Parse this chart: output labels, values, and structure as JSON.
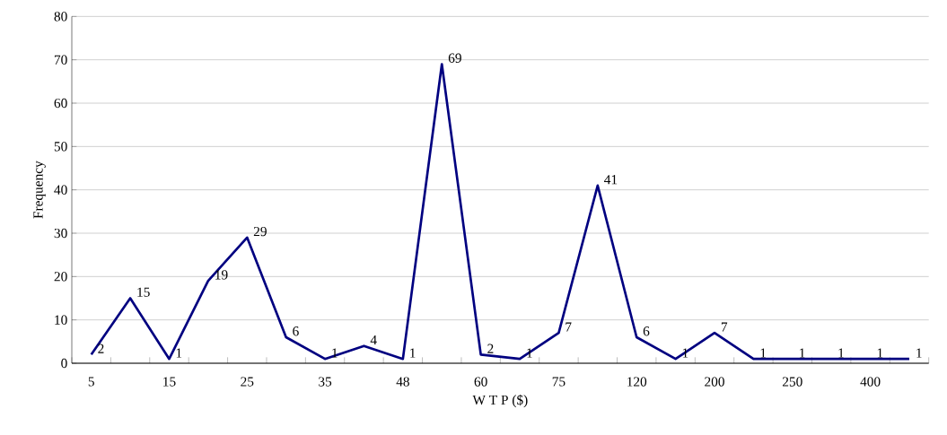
{
  "chart_data": {
    "type": "line",
    "xlabel": "W T P  ($)",
    "ylabel": "Frequency",
    "categories": [
      "5",
      null,
      "15",
      null,
      "25",
      null,
      "35",
      null,
      "48",
      null,
      "60",
      null,
      "75",
      null,
      "120",
      null,
      "200",
      null,
      "250",
      null,
      "400",
      null
    ],
    "values": [
      2,
      15,
      1,
      19,
      29,
      6,
      1,
      4,
      1,
      69,
      2,
      1,
      7,
      41,
      6,
      1,
      7,
      1,
      1,
      1,
      1,
      1
    ],
    "color": "#000080",
    "ylim": [
      0,
      80
    ],
    "yticks": [
      0,
      10,
      20,
      30,
      40,
      50,
      60,
      70,
      80
    ],
    "grid": "y",
    "data_labels": true,
    "marker": "none",
    "line_style": "solid"
  }
}
